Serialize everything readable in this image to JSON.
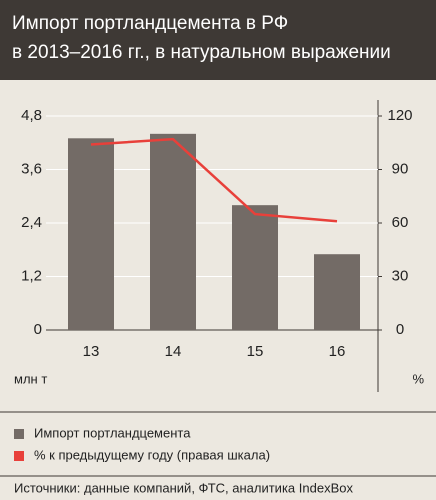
{
  "chart_data": {
    "type": "bar-line",
    "title": [
      "Импорт портландцемента в РФ",
      "в 2013–2016 гг., в натуральном выражении"
    ],
    "categories": [
      "13",
      "14",
      "15",
      "16"
    ],
    "series": [
      {
        "name": "Импорт портландцемента",
        "color": "#736b66",
        "type": "bar",
        "values": [
          4.3,
          4.4,
          2.8,
          1.7
        ]
      },
      {
        "name": "% к предыдущему году (правая шкала)",
        "color": "#e8403a",
        "type": "line",
        "axis": "y2",
        "values": [
          104,
          107,
          65,
          61
        ]
      }
    ],
    "ylim": [
      0,
      4.8
    ],
    "yticks": [
      0,
      {
        "value": 1.2,
        "label": "1,2"
      },
      {
        "value": 2.4,
        "label": "2,4"
      },
      {
        "value": 3.6,
        "label": "3,6"
      },
      {
        "value": 4.8,
        "label": "4,8"
      }
    ],
    "y2lim": [
      0,
      120
    ],
    "y2ticks": [
      0,
      30,
      60,
      90,
      120
    ],
    "y_label": "млн т",
    "y2_label": "%",
    "grid": true,
    "source": "Источники: данные компаний, ФТС, аналитика IndexBox"
  }
}
